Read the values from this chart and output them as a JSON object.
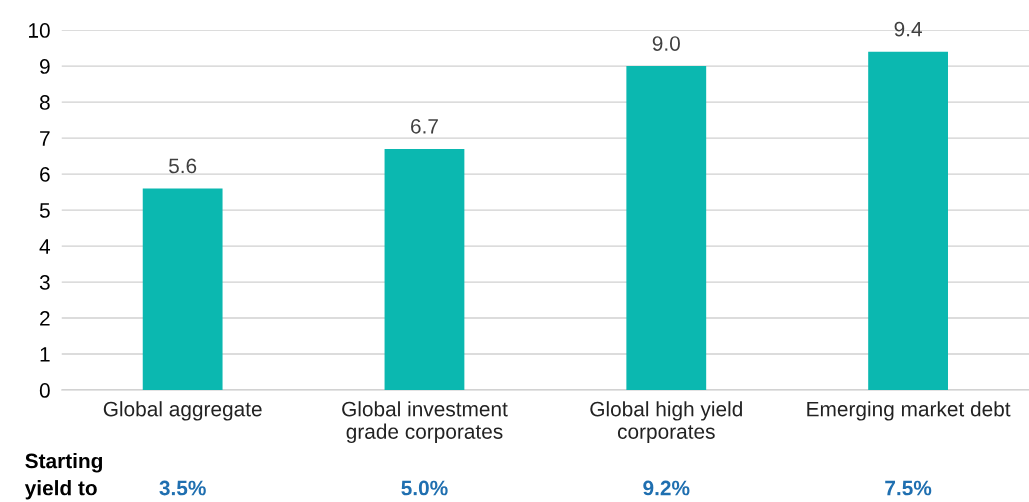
{
  "chart_data": {
    "type": "bar",
    "categories": [
      "Global aggregate",
      "Global investment\ngrade corporates",
      "Global high yield\ncorporates",
      "Emerging market debt"
    ],
    "values": [
      5.6,
      6.7,
      9.0,
      9.4
    ],
    "color": "#0bb8b0",
    "data_labels": true,
    "value_labels": [
      "5.6",
      "6.7",
      "9.0",
      "9.4"
    ],
    "ylim": [
      0,
      10
    ],
    "yticks": [
      0,
      1,
      2,
      3,
      4,
      5,
      6,
      7,
      8,
      9,
      10
    ],
    "grid": "y",
    "annotations": [
      "Starting\nyield to",
      "3.5%",
      "5.0%",
      "9.2%",
      "7.5%"
    ]
  }
}
